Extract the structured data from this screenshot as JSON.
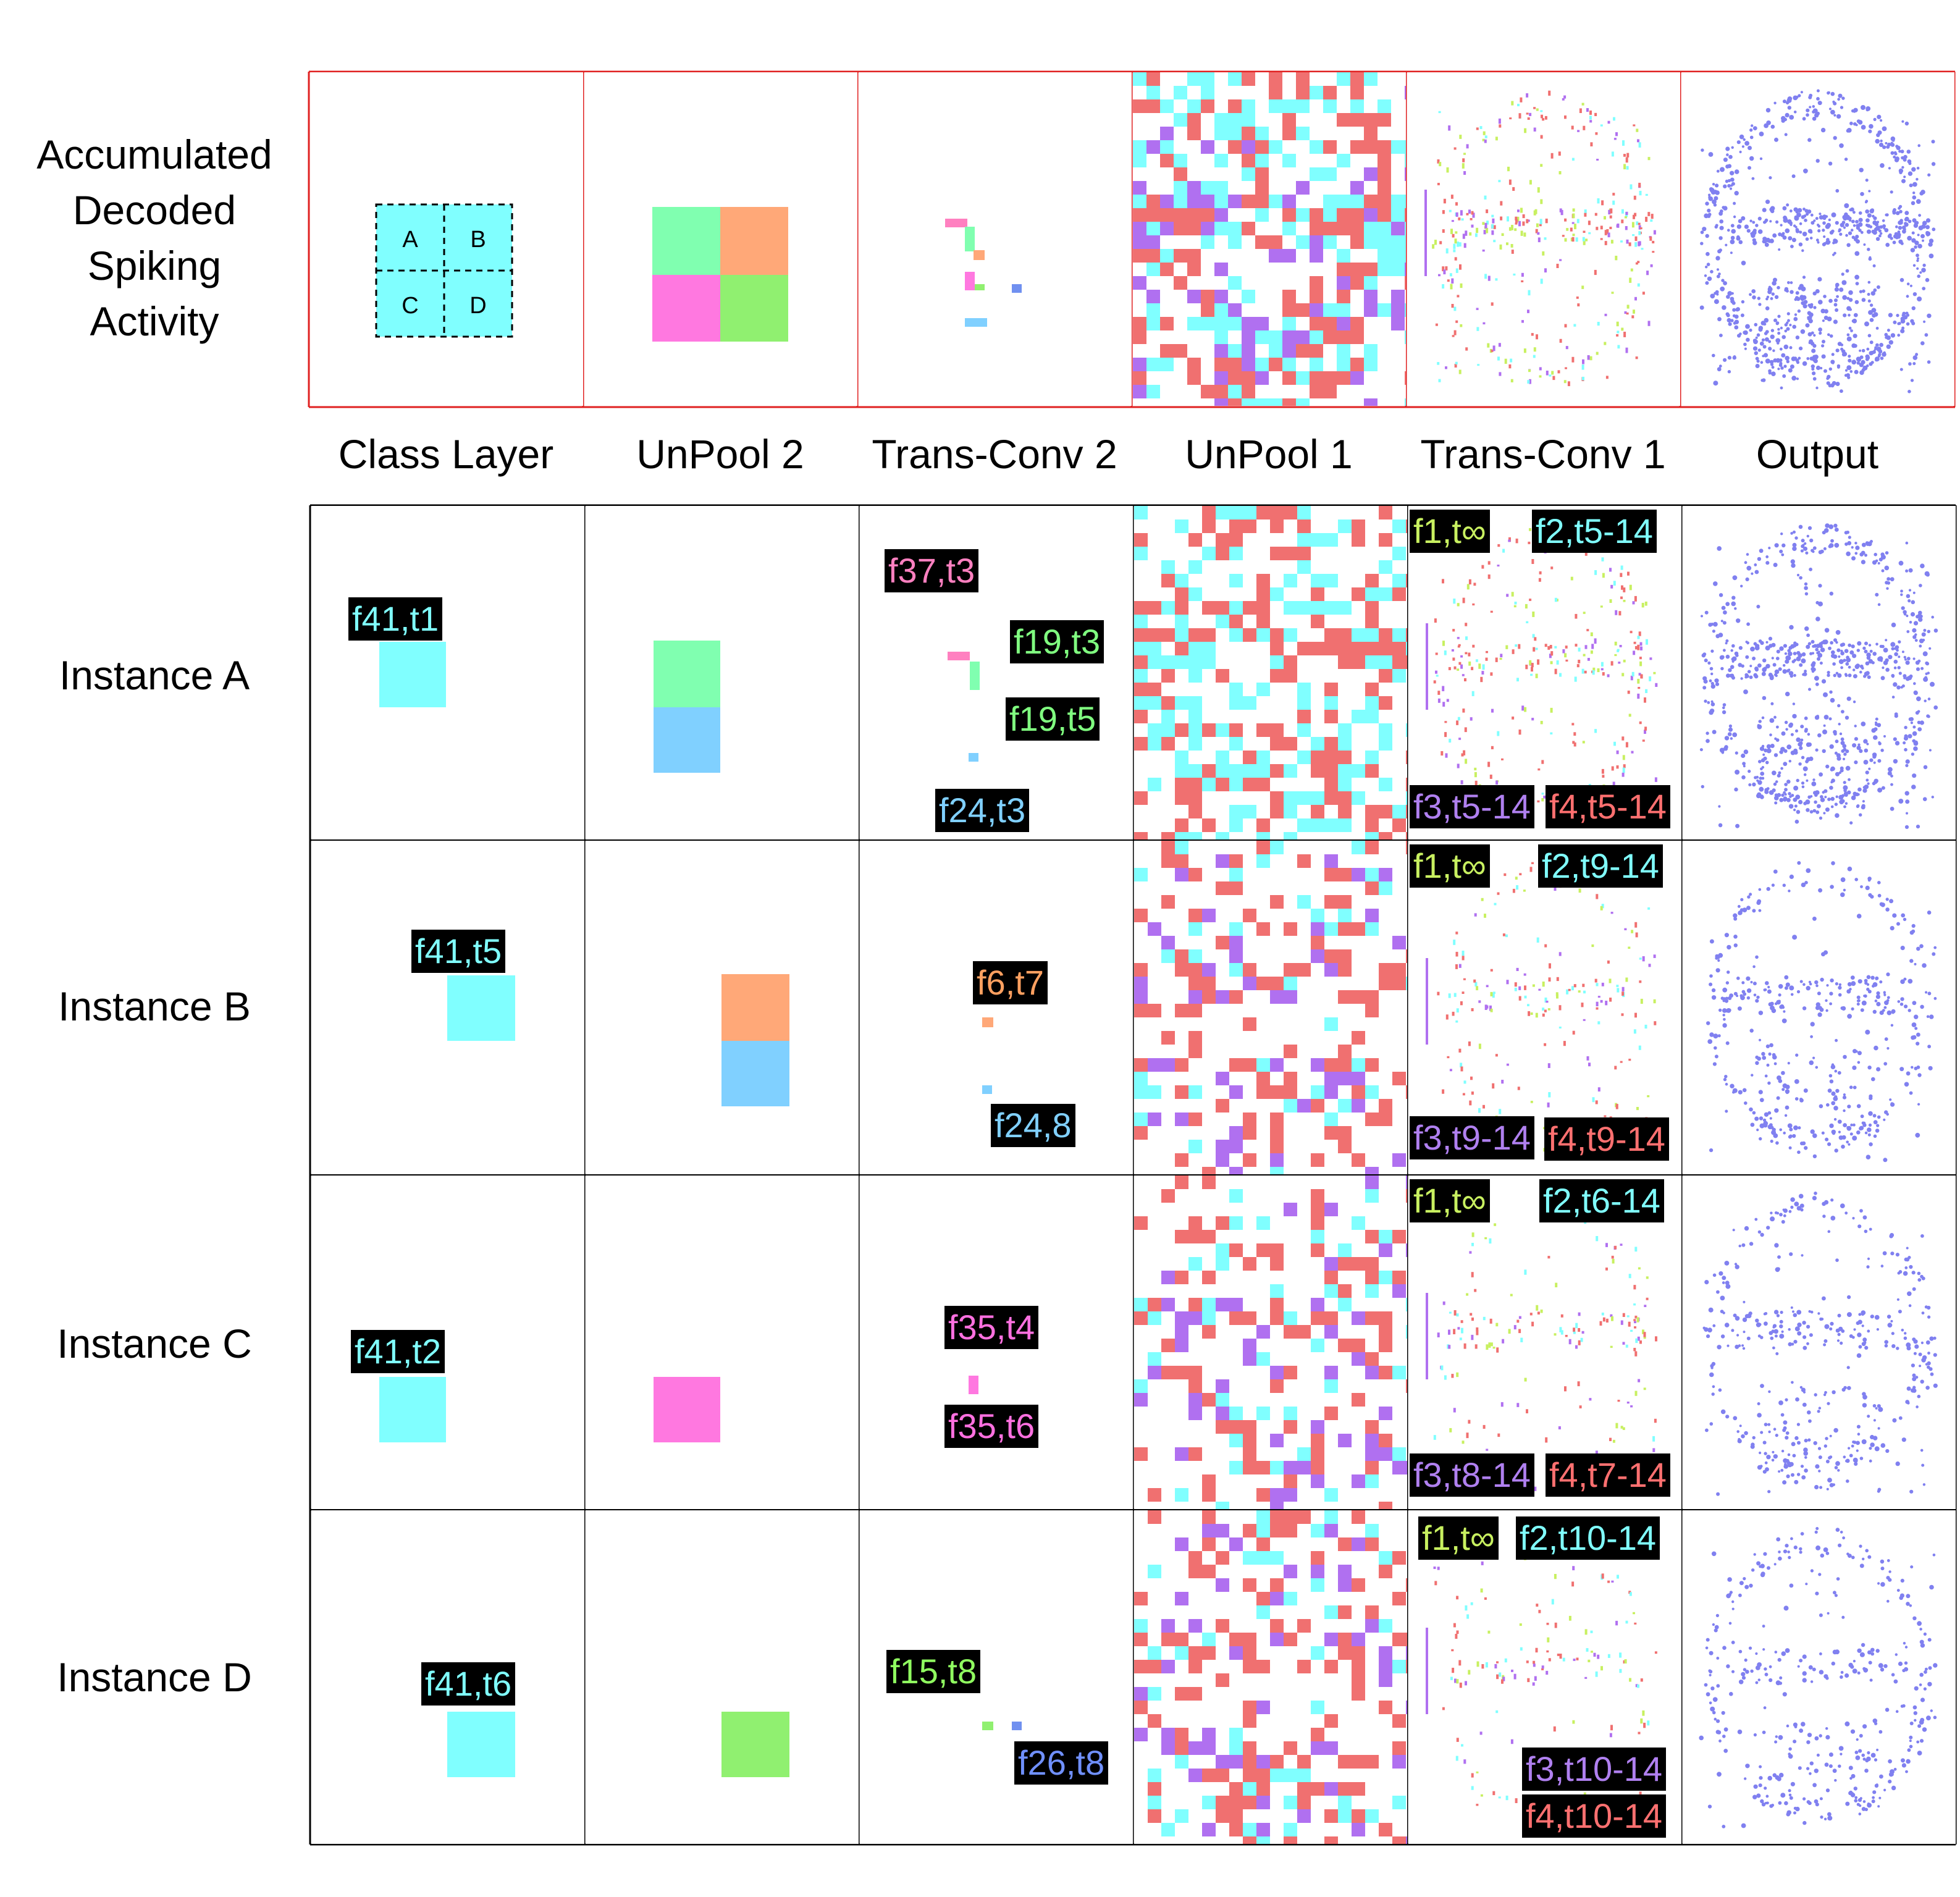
{
  "row_labels": {
    "top_line1": "Accumulated",
    "top_line2": "Decoded",
    "top_line3": "Spiking",
    "top_line4": "Activity",
    "a": "Instance A",
    "b": "Instance B",
    "c": "Instance C",
    "d": "Instance D"
  },
  "col_labels": {
    "class_layer": "Class Layer",
    "unpool2": "UnPool 2",
    "transconv2": "Trans-Conv 2",
    "unpool1": "UnPool 1",
    "transconv1": "Trans-Conv 1",
    "output": "Output"
  },
  "quadrants": {
    "a": "A",
    "b": "B",
    "c": "C",
    "d": "D"
  },
  "tags": {
    "a_class": "f41,t1",
    "a_tc2_1": "f37,t3",
    "a_tc2_2": "f19,t3",
    "a_tc2_3": "f19,t5",
    "a_tc2_4": "f24,t3",
    "a_tc1_1": "f1,t∞",
    "a_tc1_2": "f2,t5-14",
    "a_tc1_3": "f3,t5-14",
    "a_tc1_4": "f4,t5-14",
    "b_class": "f41,t5",
    "b_tc2_1": "f6,t7",
    "b_tc2_2": "f24,8",
    "b_tc1_1": "f1,t∞",
    "b_tc1_2": "f2,t9-14",
    "b_tc1_3": "f3,t9-14",
    "b_tc1_4": "f4,t9-14",
    "c_class": "f41,t2",
    "c_tc2_1": "f35,t4",
    "c_tc2_2": "f35,t6",
    "c_tc1_1": "f1,t∞",
    "c_tc1_2": "f2,t6-14",
    "c_tc1_3": "f3,t8-14",
    "c_tc1_4": "f4,t7-14",
    "d_class": "f41,t6",
    "d_tc2_1": "f15,t8",
    "d_tc2_2": "f26,t8",
    "d_tc1_1": "f1,t∞",
    "d_tc1_2": "f2,t10-14",
    "d_tc1_3": "f3,t10-14",
    "d_tc1_4": "f4,t10-14"
  },
  "colors": {
    "cyan": "#80FFFF",
    "mint": "#80FFB0",
    "orange": "#FFA878",
    "pink": "#FF78E0",
    "green": "#90F070",
    "sky": "#80D0FF",
    "blue": "#7090F0",
    "salmon": "#F07070",
    "purple": "#B070F0",
    "lime": "#C8F060",
    "violet": "#8080F0",
    "tag_f1": "#C8F060",
    "tag_f2": "#80FFFF",
    "tag_f3": "#B080F0",
    "tag_f4": "#FF7070",
    "tag_pink": "#FF80C0",
    "tag_green": "#80FF80",
    "tag_sky": "#80D0FF",
    "tag_orange": "#FFA060",
    "tag_magenta": "#FF70E0",
    "tag_blue": "#7090FF",
    "tag_lime": "#90FF60"
  }
}
